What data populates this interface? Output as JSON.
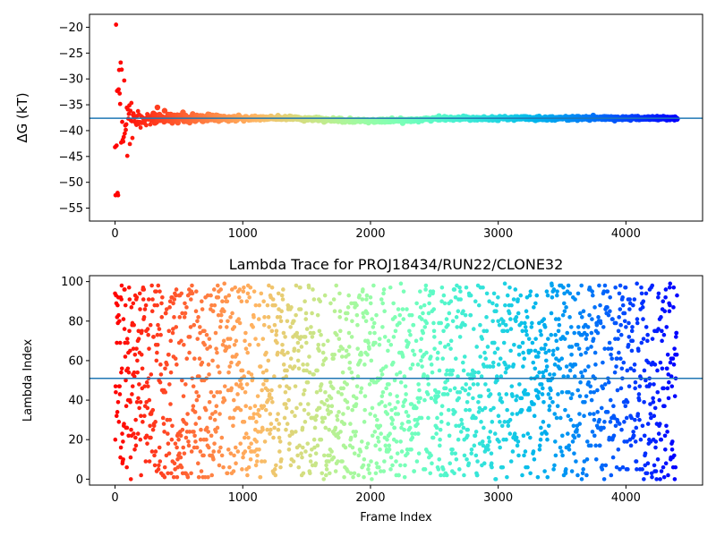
{
  "chart_data": [
    {
      "type": "scatter",
      "title": "",
      "xlabel": "",
      "ylabel": "ΔG (kT)",
      "xlim": [
        -200,
        4600
      ],
      "ylim": [
        -57.5,
        -17.5
      ],
      "xticks": [
        0,
        1000,
        2000,
        3000,
        4000
      ],
      "yticks": [
        -20,
        -25,
        -30,
        -35,
        -40,
        -45,
        -50,
        -55
      ],
      "grid": false,
      "colormap": "rainbow",
      "hline": -37.6,
      "hline_color": "#1f77b4",
      "frames": [
        0,
        4400
      ],
      "final_value": -37.6
    },
    {
      "type": "scatter",
      "title": "Lambda Trace for PROJ18434/RUN22/CLONE32",
      "xlabel": "Frame Index",
      "ylabel": "Lambda Index",
      "xlim": [
        -200,
        4600
      ],
      "ylim": [
        -3,
        103
      ],
      "xticks": [
        0,
        1000,
        2000,
        3000,
        4000
      ],
      "yticks": [
        0,
        20,
        40,
        60,
        80,
        100
      ],
      "grid": false,
      "colormap": "rainbow",
      "hline": 51,
      "hline_color": "#1f77b4",
      "frames": [
        0,
        4400
      ],
      "lambda_range": [
        0,
        99
      ]
    }
  ]
}
